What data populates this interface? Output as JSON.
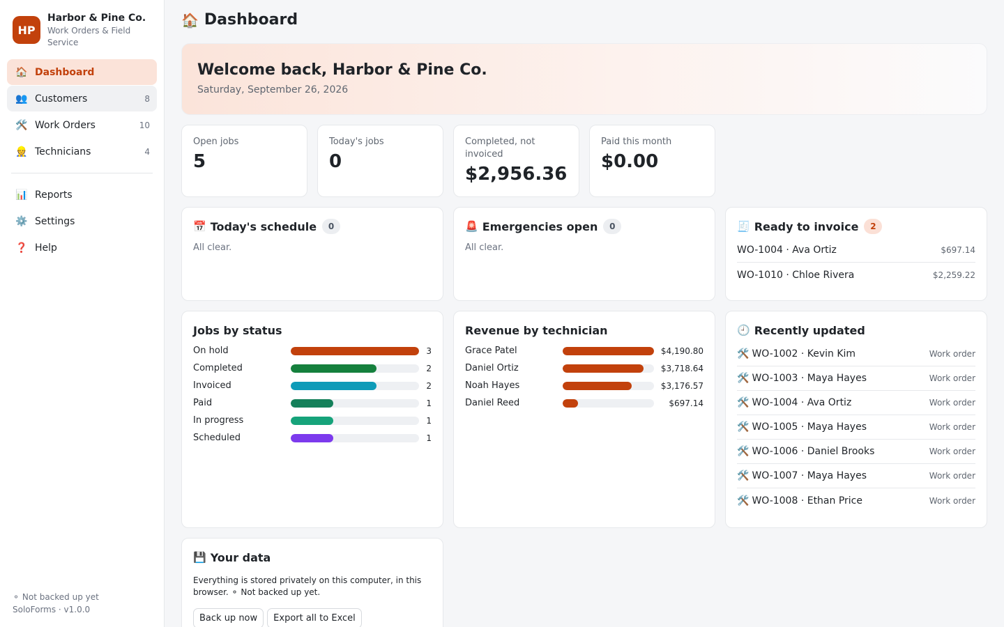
{
  "brand": {
    "logo": "HP",
    "name": "Harbor & Pine Co.",
    "subtitle": "Work Orders & Field Service",
    "accent": "#c2410c"
  },
  "nav": {
    "primary": [
      {
        "icon": "🏠",
        "icon_name": "home-icon",
        "label": "Dashboard",
        "count": ""
      },
      {
        "icon": "👥",
        "icon_name": "users-icon",
        "label": "Customers",
        "count": "8"
      },
      {
        "icon": "🛠️",
        "icon_name": "tools-icon",
        "label": "Work Orders",
        "count": "10"
      },
      {
        "icon": "👷",
        "icon_name": "worker-icon",
        "label": "Technicians",
        "count": "4"
      }
    ],
    "secondary": [
      {
        "icon": "📊",
        "icon_name": "chart-icon",
        "label": "Reports"
      },
      {
        "icon": "⚙️",
        "icon_name": "gear-icon",
        "label": "Settings"
      },
      {
        "icon": "❓",
        "icon_name": "help-icon",
        "label": "Help"
      }
    ],
    "active": "Dashboard"
  },
  "footer": {
    "backup_status": "⚬ Not backed up yet",
    "version": "SoloForms · v1.0.0"
  },
  "page": {
    "title_icon": "🏠",
    "title": "Dashboard"
  },
  "welcome": {
    "heading": "Welcome back, Harbor & Pine Co.",
    "date": "Saturday, September 26, 2026"
  },
  "stats": [
    {
      "label": "Open jobs",
      "value": "5"
    },
    {
      "label": "Today's jobs",
      "value": "0"
    },
    {
      "label": "Completed, not invoiced",
      "value": "$2,956.36"
    },
    {
      "label": "Paid this month",
      "value": "$0.00"
    }
  ],
  "schedule": {
    "icon": "📅",
    "title": "Today's schedule",
    "count": "0",
    "empty": "All clear."
  },
  "emergencies": {
    "icon": "🚨",
    "title": "Emergencies open",
    "count": "0",
    "empty": "All clear."
  },
  "invoice": {
    "icon": "🧾",
    "title": "Ready to invoice",
    "count": "2",
    "rows": [
      {
        "label": "WO-1004 · Ava Ortiz",
        "amount": "$697.14"
      },
      {
        "label": "WO-1010 · Chloe Rivera",
        "amount": "$2,259.22"
      }
    ]
  },
  "jobs_by_status": {
    "title": "Jobs by status",
    "max": 3,
    "rows": [
      {
        "label": "On hold",
        "value": 3,
        "display": "3",
        "color": "#c2410c"
      },
      {
        "label": "Completed",
        "value": 2,
        "display": "2",
        "color": "#15803d"
      },
      {
        "label": "Invoiced",
        "value": 2,
        "display": "2",
        "color": "#0e9bb8"
      },
      {
        "label": "Paid",
        "value": 1,
        "display": "1",
        "color": "#15805a"
      },
      {
        "label": "In progress",
        "value": 1,
        "display": "1",
        "color": "#16a37a"
      },
      {
        "label": "Scheduled",
        "value": 1,
        "display": "1",
        "color": "#7c3aed"
      }
    ]
  },
  "revenue_by_technician": {
    "title": "Revenue by technician",
    "max": 4190.8,
    "rows": [
      {
        "label": "Grace Patel",
        "value": 4190.8,
        "display": "$4,190.80",
        "color": "#c2410c"
      },
      {
        "label": "Daniel Ortiz",
        "value": 3718.64,
        "display": "$3,718.64",
        "color": "#c2410c"
      },
      {
        "label": "Noah Hayes",
        "value": 3176.57,
        "display": "$3,176.57",
        "color": "#c2410c"
      },
      {
        "label": "Daniel Reed",
        "value": 697.14,
        "display": "$697.14",
        "color": "#c2410c"
      }
    ]
  },
  "recently_updated": {
    "icon": "🕘",
    "title": "Recently updated",
    "row_icon": "🛠️",
    "rows": [
      {
        "label": "WO-1002 · Kevin Kim",
        "type": "Work order"
      },
      {
        "label": "WO-1003 · Maya Hayes",
        "type": "Work order"
      },
      {
        "label": "WO-1004 · Ava Ortiz",
        "type": "Work order"
      },
      {
        "label": "WO-1005 · Maya Hayes",
        "type": "Work order"
      },
      {
        "label": "WO-1006 · Daniel Brooks",
        "type": "Work order"
      },
      {
        "label": "WO-1007 · Maya Hayes",
        "type": "Work order"
      },
      {
        "label": "WO-1008 · Ethan Price",
        "type": "Work order"
      }
    ]
  },
  "your_data": {
    "icon": "💾",
    "title": "Your data",
    "text": "Everything is stored privately on this computer, in this browser. ⚬ Not backed up yet.",
    "backup_button": "Back up now",
    "export_button": "Export all to Excel"
  }
}
